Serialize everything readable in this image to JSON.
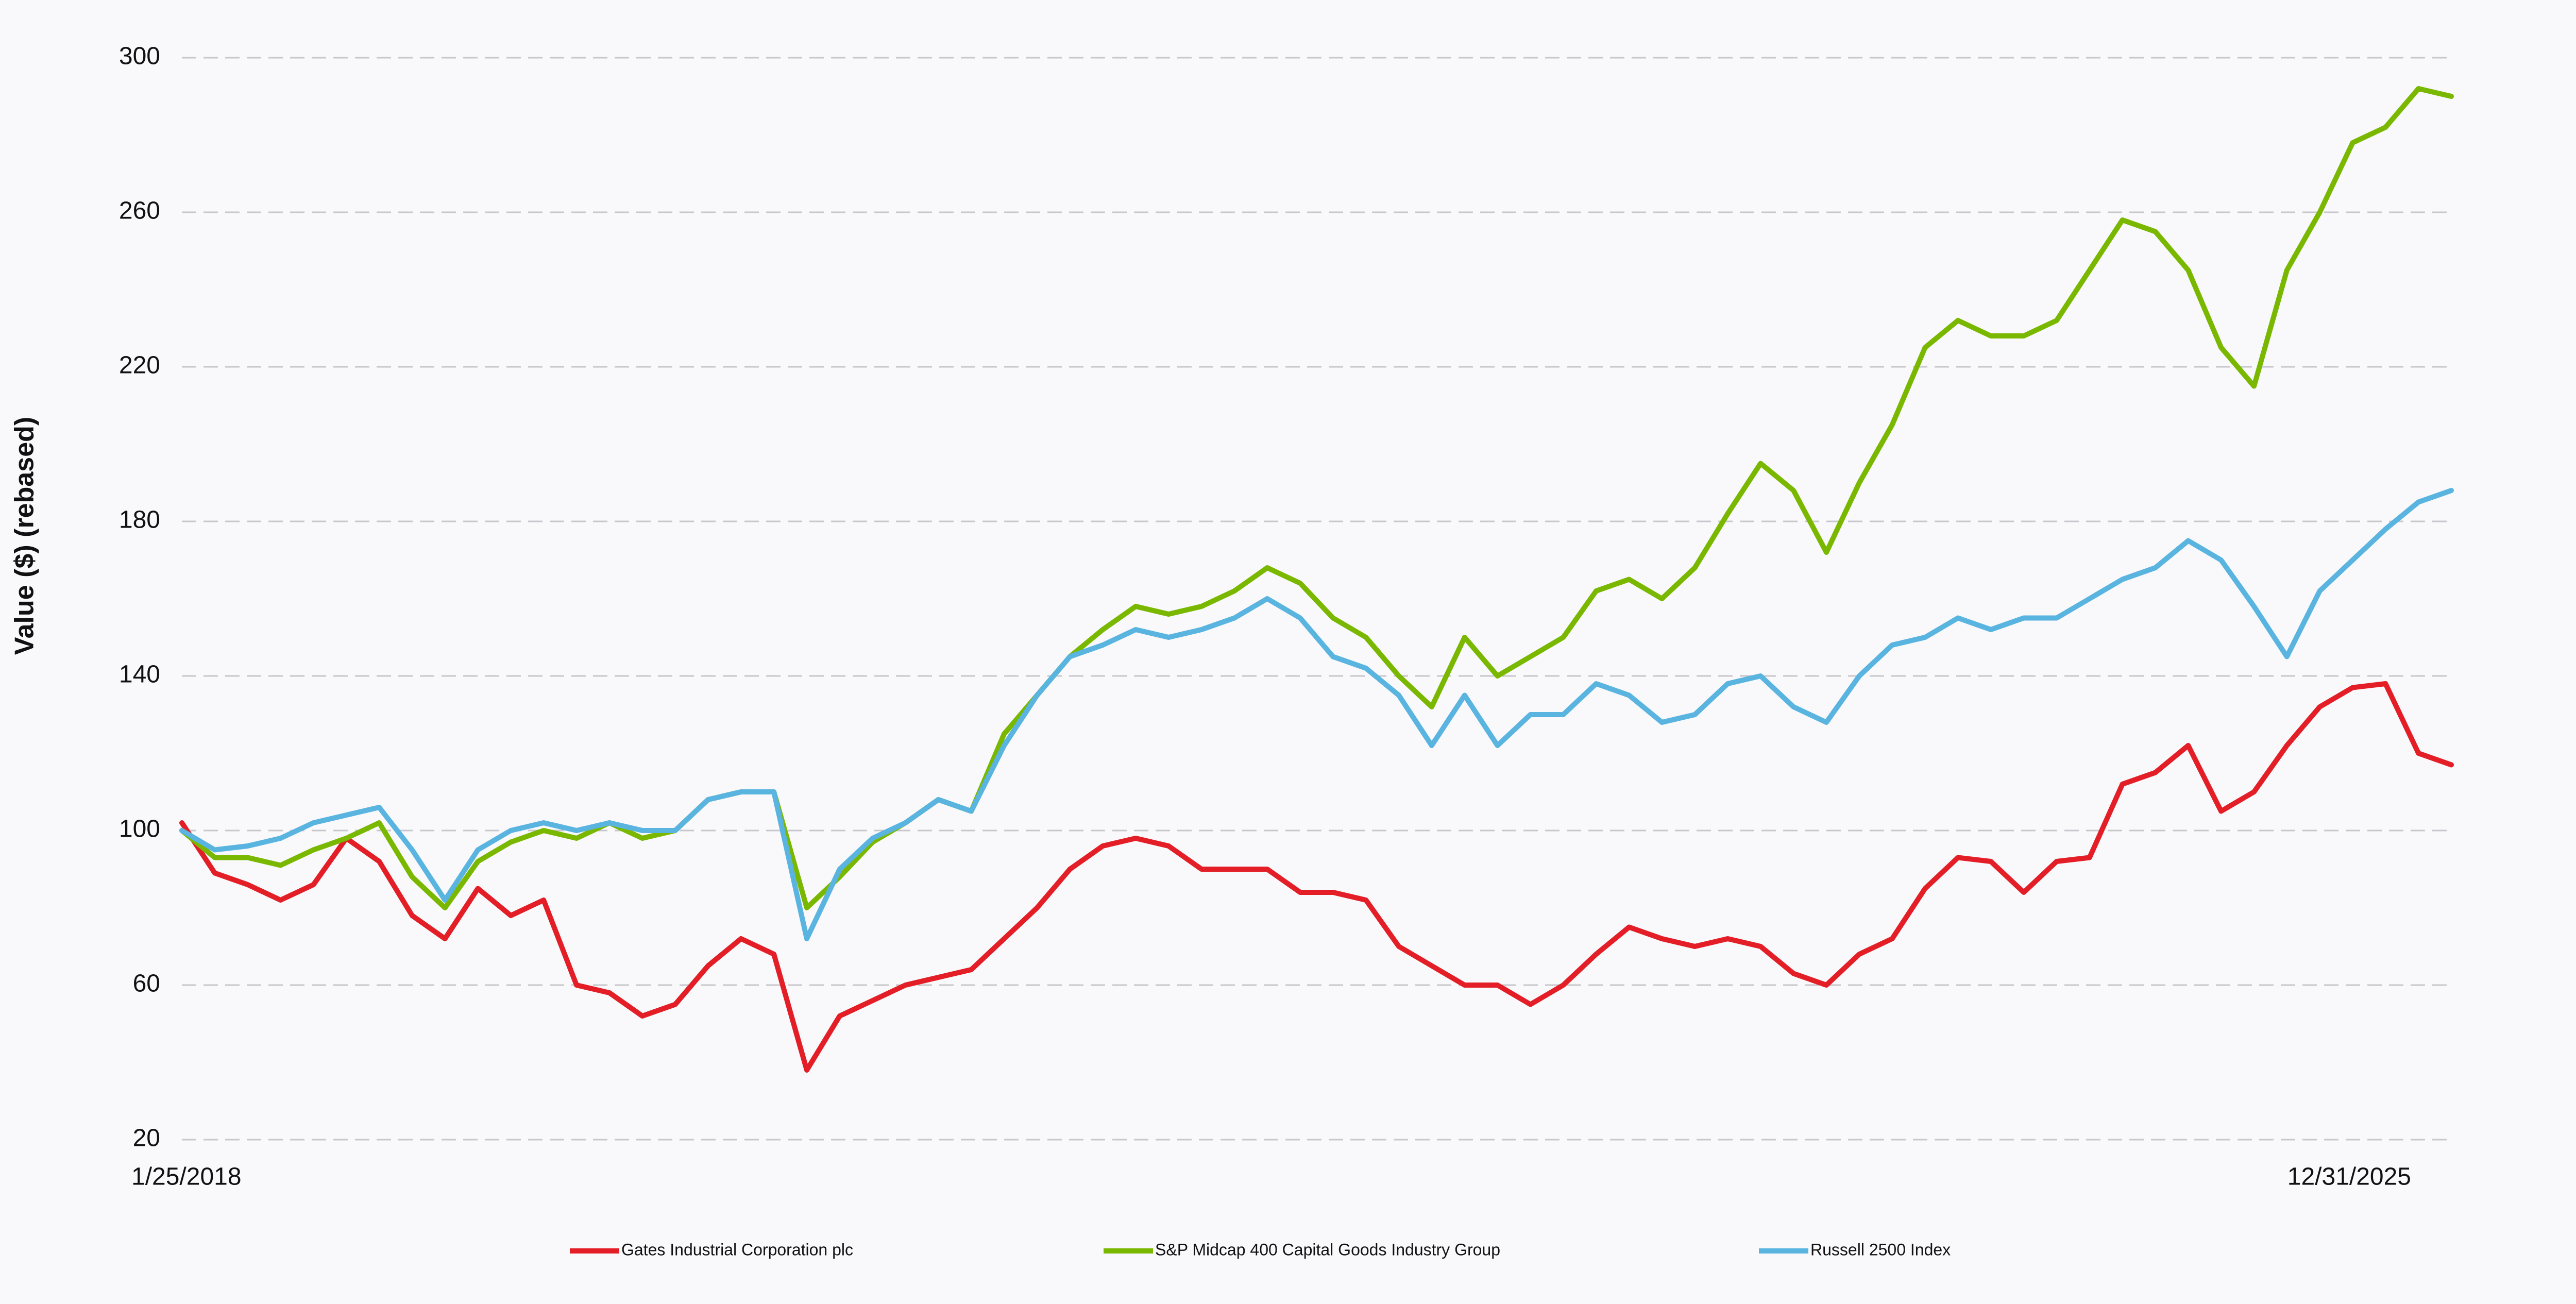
{
  "chart_data": {
    "type": "line",
    "y_label": "Value ($) (rebased)",
    "categories": [
      "1/25/2018",
      null,
      null,
      null,
      null,
      null,
      null,
      null,
      null,
      null,
      null,
      null,
      null,
      null,
      null,
      null,
      null,
      null,
      null,
      null,
      null,
      null,
      null,
      null,
      null,
      null,
      null,
      null,
      null,
      null,
      null,
      null,
      null,
      null,
      null,
      null,
      null,
      null,
      null,
      null,
      null,
      null,
      null,
      null,
      null,
      null,
      null,
      null,
      null,
      null,
      null,
      null,
      null,
      null,
      null,
      null,
      null,
      null,
      null,
      null,
      null,
      null,
      null,
      null,
      null,
      null,
      null,
      null,
      null,
      "12/31/2025"
    ],
    "series": [
      {
        "name": "Gates Industrial Corporation plc",
        "color": "#e31e26",
        "values": [
          102,
          89,
          86,
          82,
          86,
          98,
          92,
          78,
          72,
          85,
          78,
          82,
          60,
          58,
          52,
          55,
          65,
          72,
          68,
          38,
          52,
          56,
          60,
          62,
          64,
          72,
          80,
          90,
          96,
          98,
          96,
          90,
          90,
          90,
          84,
          84,
          82,
          70,
          65,
          60,
          60,
          55,
          60,
          68,
          75,
          72,
          70,
          72,
          70,
          63,
          60,
          68,
          72,
          85,
          93,
          92,
          84,
          92,
          93,
          112,
          115,
          122,
          105,
          110,
          122,
          132,
          137,
          138,
          120,
          117
        ]
      },
      {
        "name": "S&P Midcap 400 Capital Goods Industry Group",
        "color": "#7ab800",
        "values": [
          100,
          93,
          93,
          91,
          95,
          98,
          102,
          88,
          80,
          92,
          97,
          100,
          98,
          102,
          98,
          100,
          108,
          110,
          110,
          80,
          88,
          97,
          102,
          108,
          105,
          125,
          135,
          145,
          152,
          158,
          156,
          158,
          162,
          168,
          164,
          155,
          150,
          140,
          132,
          150,
          140,
          145,
          150,
          162,
          165,
          160,
          168,
          182,
          195,
          188,
          172,
          190,
          205,
          225,
          232,
          228,
          228,
          232,
          245,
          258,
          255,
          245,
          225,
          215,
          245,
          260,
          278,
          282,
          292,
          290
        ]
      },
      {
        "name": "Russell 2500 Index",
        "color": "#5ab4e0",
        "values": [
          100,
          95,
          96,
          98,
          102,
          104,
          106,
          95,
          82,
          95,
          100,
          102,
          100,
          102,
          100,
          100,
          108,
          110,
          110,
          72,
          90,
          98,
          102,
          108,
          105,
          122,
          135,
          145,
          148,
          152,
          150,
          152,
          155,
          160,
          155,
          145,
          142,
          135,
          122,
          135,
          122,
          130,
          130,
          138,
          135,
          128,
          130,
          138,
          140,
          132,
          128,
          140,
          148,
          150,
          155,
          152,
          155,
          155,
          160,
          165,
          168,
          175,
          170,
          158,
          145,
          162,
          170,
          178,
          185,
          188
        ]
      }
    ],
    "ylim": [
      20,
      300
    ],
    "yticks": [
      20,
      60,
      100,
      140,
      180,
      220,
      260,
      300
    ],
    "grid": true
  }
}
